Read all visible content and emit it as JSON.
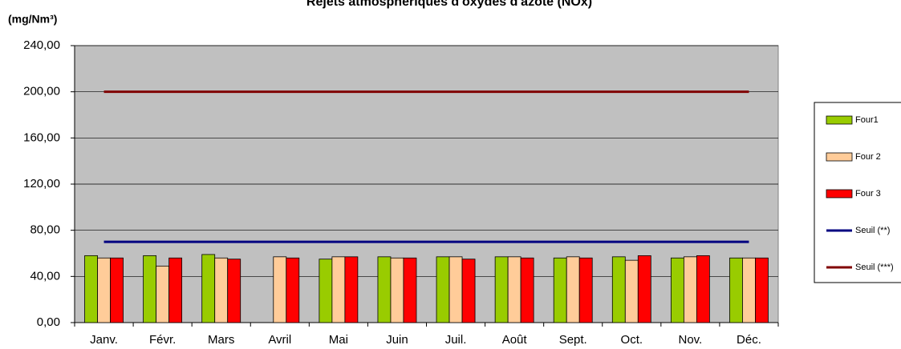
{
  "chart_data": {
    "type": "bar",
    "title": "Rejets atmosphériques d'oxydes d'azote (NOx)",
    "y_label": "(mg/Nm³)",
    "categories": [
      "Janv.",
      "Févr.",
      "Mars",
      "Avril",
      "Mai",
      "Juin",
      "Juil.",
      "Août",
      "Sept.",
      "Oct.",
      "Nov.",
      "Déc."
    ],
    "series": [
      {
        "name": "Four1",
        "type": "bar",
        "color": "#99cc00",
        "values": [
          58,
          58,
          59,
          null,
          55,
          57,
          57,
          57,
          56,
          57,
          56,
          56
        ]
      },
      {
        "name": "Four 2",
        "type": "bar",
        "color": "#ffcc99",
        "values": [
          56,
          49,
          56,
          57,
          57,
          56,
          57,
          57,
          57,
          54,
          57,
          56
        ]
      },
      {
        "name": "Four 3",
        "type": "bar",
        "color": "#ff0000",
        "values": [
          56,
          56,
          55,
          56,
          57,
          56,
          55,
          56,
          56,
          58,
          58,
          56
        ]
      },
      {
        "name": "Seuil (**)",
        "type": "line",
        "color": "#000080",
        "values": [
          70,
          70,
          70,
          70,
          70,
          70,
          70,
          70,
          70,
          70,
          70,
          70
        ]
      },
      {
        "name": "Seuil (***)",
        "type": "line",
        "color": "#800000",
        "values": [
          200,
          200,
          200,
          200,
          200,
          200,
          200,
          200,
          200,
          200,
          200,
          200
        ]
      }
    ],
    "ylim": [
      0,
      240
    ],
    "yticks": [
      {
        "value": 0,
        "label": "0,00"
      },
      {
        "value": 40,
        "label": "40,00"
      },
      {
        "value": 80,
        "label": "80,00"
      },
      {
        "value": 120,
        "label": "120,00"
      },
      {
        "value": 160,
        "label": "160,00"
      },
      {
        "value": 200,
        "label": "200,00"
      },
      {
        "value": 240,
        "label": "240,00"
      }
    ],
    "grid": true,
    "legend": "right"
  }
}
